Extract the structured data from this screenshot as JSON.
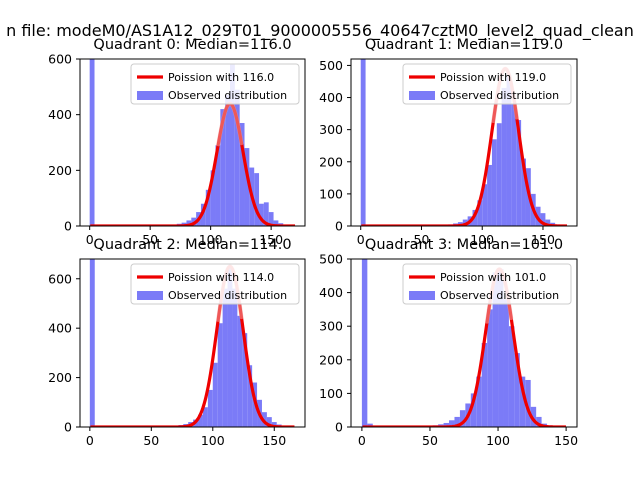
{
  "figure_title": "n file: modeM0/AS1A12_029T01_9000005556_40647cztM0_level2_quad_clean",
  "colors": {
    "histogram": "#7b7bf7",
    "curve": "#ee0000",
    "curve_peak_highlight": "#f1a0a0",
    "axes": "#000000"
  },
  "chart_data": [
    {
      "type": "bar",
      "title": "Quadrant 0: Median=116.0",
      "xlim": [
        -8,
        178
      ],
      "ylim": [
        0,
        600
      ],
      "xticks": [
        0,
        50,
        100,
        150
      ],
      "yticks": [
        0,
        200,
        400,
        600
      ],
      "legend": {
        "position": "top-right",
        "line_label": "Poission with 116.0",
        "hist_label": "Observed distribution"
      },
      "poisson_mean": 116.0,
      "curve_peak": 440,
      "bin_width": 4,
      "bins": [
        {
          "x": 0,
          "y": 600
        },
        {
          "x": 64,
          "y": 3
        },
        {
          "x": 68,
          "y": 5
        },
        {
          "x": 72,
          "y": 8
        },
        {
          "x": 76,
          "y": 12
        },
        {
          "x": 80,
          "y": 20
        },
        {
          "x": 84,
          "y": 30
        },
        {
          "x": 88,
          "y": 50
        },
        {
          "x": 92,
          "y": 80
        },
        {
          "x": 96,
          "y": 130
        },
        {
          "x": 100,
          "y": 200
        },
        {
          "x": 104,
          "y": 290
        },
        {
          "x": 108,
          "y": 420
        },
        {
          "x": 112,
          "y": 470
        },
        {
          "x": 116,
          "y": 580
        },
        {
          "x": 120,
          "y": 490
        },
        {
          "x": 124,
          "y": 370
        },
        {
          "x": 128,
          "y": 280
        },
        {
          "x": 132,
          "y": 210
        },
        {
          "x": 136,
          "y": 190
        },
        {
          "x": 140,
          "y": 80
        },
        {
          "x": 144,
          "y": 85
        },
        {
          "x": 148,
          "y": 50
        },
        {
          "x": 152,
          "y": 20
        },
        {
          "x": 156,
          "y": 10
        },
        {
          "x": 160,
          "y": 5
        }
      ]
    },
    {
      "type": "bar",
      "title": "Quadrant 1: Median=119.0",
      "xlim": [
        -8,
        178
      ],
      "ylim": [
        0,
        520
      ],
      "xticks": [
        0,
        50,
        100,
        150
      ],
      "yticks": [
        0,
        100,
        200,
        300,
        400,
        500
      ],
      "legend": {
        "position": "top-right",
        "line_label": "Poission with 119.0",
        "hist_label": "Observed distribution"
      },
      "poisson_mean": 119.0,
      "curve_peak": 490,
      "bin_width": 4,
      "bins": [
        {
          "x": 0,
          "y": 520
        },
        {
          "x": 68,
          "y": 3
        },
        {
          "x": 72,
          "y": 5
        },
        {
          "x": 76,
          "y": 8
        },
        {
          "x": 80,
          "y": 12
        },
        {
          "x": 84,
          "y": 20
        },
        {
          "x": 88,
          "y": 30
        },
        {
          "x": 92,
          "y": 50
        },
        {
          "x": 96,
          "y": 80
        },
        {
          "x": 100,
          "y": 130
        },
        {
          "x": 104,
          "y": 190
        },
        {
          "x": 108,
          "y": 270
        },
        {
          "x": 112,
          "y": 320
        },
        {
          "x": 116,
          "y": 430
        },
        {
          "x": 120,
          "y": 470
        },
        {
          "x": 124,
          "y": 380
        },
        {
          "x": 128,
          "y": 330
        },
        {
          "x": 132,
          "y": 210
        },
        {
          "x": 136,
          "y": 180
        },
        {
          "x": 140,
          "y": 100
        },
        {
          "x": 144,
          "y": 60
        },
        {
          "x": 148,
          "y": 40
        },
        {
          "x": 152,
          "y": 20
        },
        {
          "x": 156,
          "y": 10
        },
        {
          "x": 160,
          "y": 5
        }
      ]
    },
    {
      "type": "bar",
      "title": "Quadrant 2: Median=114.0",
      "xlim": [
        -8,
        175
      ],
      "ylim": [
        0,
        680
      ],
      "xticks": [
        0,
        50,
        100,
        150
      ],
      "yticks": [
        0,
        200,
        400,
        600
      ],
      "legend": {
        "position": "top-right",
        "line_label": "Poission with 114.0",
        "hist_label": "Observed distribution"
      },
      "poisson_mean": 114.0,
      "curve_peak": 650,
      "bin_width": 4,
      "bins": [
        {
          "x": 0,
          "y": 680
        },
        {
          "x": 64,
          "y": 3
        },
        {
          "x": 68,
          "y": 5
        },
        {
          "x": 72,
          "y": 8
        },
        {
          "x": 76,
          "y": 12
        },
        {
          "x": 80,
          "y": 20
        },
        {
          "x": 84,
          "y": 30
        },
        {
          "x": 88,
          "y": 50
        },
        {
          "x": 92,
          "y": 80
        },
        {
          "x": 96,
          "y": 150
        },
        {
          "x": 100,
          "y": 260
        },
        {
          "x": 104,
          "y": 420
        },
        {
          "x": 108,
          "y": 560
        },
        {
          "x": 112,
          "y": 650
        },
        {
          "x": 116,
          "y": 560
        },
        {
          "x": 120,
          "y": 450
        },
        {
          "x": 124,
          "y": 380
        },
        {
          "x": 128,
          "y": 250
        },
        {
          "x": 132,
          "y": 180
        },
        {
          "x": 136,
          "y": 110
        },
        {
          "x": 140,
          "y": 60
        },
        {
          "x": 144,
          "y": 40
        },
        {
          "x": 148,
          "y": 20
        },
        {
          "x": 152,
          "y": 10
        },
        {
          "x": 156,
          "y": 5
        }
      ]
    },
    {
      "type": "bar",
      "title": "Quadrant 3: Median=101.0",
      "xlim": [
        -8,
        158
      ],
      "ylim": [
        0,
        500
      ],
      "xticks": [
        0,
        50,
        100,
        150
      ],
      "yticks": [
        0,
        100,
        200,
        300,
        400,
        500
      ],
      "legend": {
        "position": "top-right",
        "line_label": "Poission with 101.0",
        "hist_label": "Observed distribution"
      },
      "poisson_mean": 101.0,
      "curve_peak": 470,
      "bin_width": 4,
      "bins": [
        {
          "x": 0,
          "y": 500
        },
        {
          "x": 4,
          "y": 10
        },
        {
          "x": 48,
          "y": 3
        },
        {
          "x": 52,
          "y": 5
        },
        {
          "x": 56,
          "y": 8
        },
        {
          "x": 60,
          "y": 12
        },
        {
          "x": 64,
          "y": 20
        },
        {
          "x": 68,
          "y": 30
        },
        {
          "x": 72,
          "y": 50
        },
        {
          "x": 76,
          "y": 70
        },
        {
          "x": 80,
          "y": 100
        },
        {
          "x": 84,
          "y": 150
        },
        {
          "x": 88,
          "y": 250
        },
        {
          "x": 92,
          "y": 350
        },
        {
          "x": 96,
          "y": 460
        },
        {
          "x": 100,
          "y": 470
        },
        {
          "x": 104,
          "y": 380
        },
        {
          "x": 108,
          "y": 300
        },
        {
          "x": 112,
          "y": 220
        },
        {
          "x": 116,
          "y": 150
        },
        {
          "x": 120,
          "y": 140
        },
        {
          "x": 124,
          "y": 60
        },
        {
          "x": 128,
          "y": 30
        },
        {
          "x": 132,
          "y": 10
        },
        {
          "x": 136,
          "y": 5
        }
      ]
    }
  ]
}
